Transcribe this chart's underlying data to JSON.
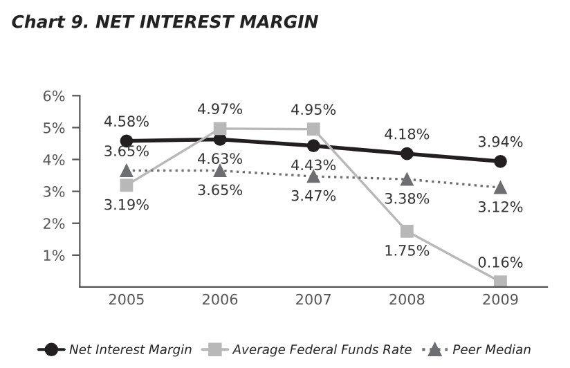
{
  "chart_data": {
    "type": "line",
    "title": "Chart 9. NET INTEREST MARGIN",
    "categories": [
      "2005",
      "2006",
      "2007",
      "2008",
      "2009"
    ],
    "series": [
      {
        "name": "Net Interest Margin",
        "color": "#231f20",
        "marker": "circle",
        "line_style": "solid",
        "values": [
          4.58,
          4.63,
          4.43,
          4.18,
          3.94
        ],
        "value_labels": [
          "4.58%",
          "4.63%",
          "4.43%",
          "4.18%",
          "3.94%"
        ]
      },
      {
        "name": "Average Federal Funds Rate",
        "color": "#b8b8b8",
        "marker": "square",
        "line_style": "solid",
        "values": [
          3.19,
          4.97,
          4.95,
          1.75,
          0.16
        ],
        "value_labels": [
          "3.19%",
          "4.97%",
          "4.95%",
          "1.75%",
          "0.16%"
        ]
      },
      {
        "name": "Peer Median",
        "color": "#6d6e71",
        "marker": "triangle",
        "line_style": "dotted",
        "values": [
          3.65,
          3.65,
          3.47,
          3.38,
          3.12
        ],
        "value_labels": [
          "3.65%",
          "3.65%",
          "3.47%",
          "3.38%",
          "3.12%"
        ]
      }
    ],
    "ylim": [
      0,
      6
    ],
    "yticks": [
      {
        "value": 1,
        "label": "1%"
      },
      {
        "value": 2,
        "label": "2%"
      },
      {
        "value": 3,
        "label": "3%"
      },
      {
        "value": 4,
        "label": "4%"
      },
      {
        "value": 5,
        "label": "5%"
      },
      {
        "value": 6,
        "label": "6%"
      }
    ],
    "grid": false,
    "legend": "bottom"
  }
}
